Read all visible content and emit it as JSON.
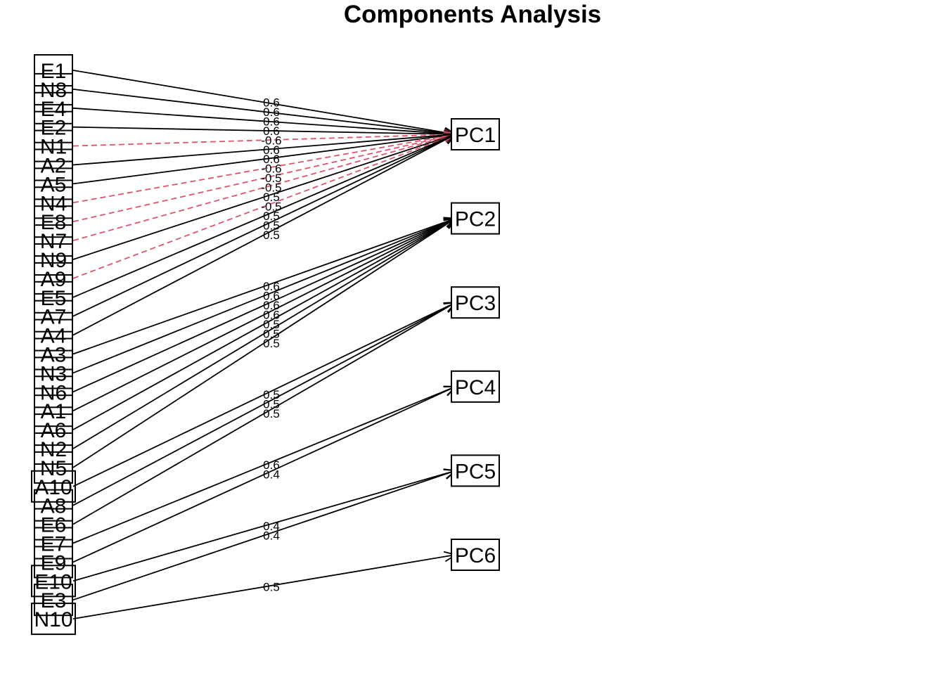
{
  "title": "Components Analysis",
  "colors": {
    "positive": "#000000",
    "negative": "#DF536B"
  },
  "variables": [
    "E1",
    "N8",
    "E4",
    "E2",
    "N1",
    "A2",
    "A5",
    "N4",
    "E8",
    "N7",
    "N9",
    "A9",
    "E5",
    "A7",
    "A4",
    "A3",
    "N3",
    "N6",
    "A1",
    "A6",
    "N2",
    "N5",
    "A10",
    "A8",
    "E6",
    "E7",
    "E9",
    "E10",
    "E3",
    "N10"
  ],
  "components": [
    "PC1",
    "PC2",
    "PC3",
    "PC4",
    "PC5",
    "PC6"
  ],
  "loadings": [
    {
      "from": "E1",
      "to": "PC1",
      "label": "0.6",
      "sign": "pos"
    },
    {
      "from": "N8",
      "to": "PC1",
      "label": "0.6",
      "sign": "pos"
    },
    {
      "from": "E4",
      "to": "PC1",
      "label": "0.6",
      "sign": "pos"
    },
    {
      "from": "E2",
      "to": "PC1",
      "label": "0.6",
      "sign": "pos"
    },
    {
      "from": "N1",
      "to": "PC1",
      "label": "-0.6",
      "sign": "neg"
    },
    {
      "from": "A2",
      "to": "PC1",
      "label": "0.6",
      "sign": "pos"
    },
    {
      "from": "A5",
      "to": "PC1",
      "label": "0.6",
      "sign": "pos"
    },
    {
      "from": "N4",
      "to": "PC1",
      "label": "-0.6",
      "sign": "neg"
    },
    {
      "from": "E8",
      "to": "PC1",
      "label": "-0.5",
      "sign": "neg"
    },
    {
      "from": "N7",
      "to": "PC1",
      "label": "-0.5",
      "sign": "neg"
    },
    {
      "from": "N9",
      "to": "PC1",
      "label": "0.5",
      "sign": "pos"
    },
    {
      "from": "A9",
      "to": "PC1",
      "label": "-0.5",
      "sign": "neg"
    },
    {
      "from": "E5",
      "to": "PC1",
      "label": "0.5",
      "sign": "pos"
    },
    {
      "from": "A7",
      "to": "PC1",
      "label": "0.5",
      "sign": "pos"
    },
    {
      "from": "A4",
      "to": "PC1",
      "label": "0.5",
      "sign": "pos"
    },
    {
      "from": "A3",
      "to": "PC2",
      "label": "0.6",
      "sign": "pos"
    },
    {
      "from": "N3",
      "to": "PC2",
      "label": "0.6",
      "sign": "pos"
    },
    {
      "from": "N6",
      "to": "PC2",
      "label": "0.6",
      "sign": "pos"
    },
    {
      "from": "A1",
      "to": "PC2",
      "label": "0.6",
      "sign": "pos"
    },
    {
      "from": "A6",
      "to": "PC2",
      "label": "0.5",
      "sign": "pos"
    },
    {
      "from": "N2",
      "to": "PC2",
      "label": "0.5",
      "sign": "pos"
    },
    {
      "from": "N5",
      "to": "PC2",
      "label": "0.5",
      "sign": "pos"
    },
    {
      "from": "A10",
      "to": "PC3",
      "label": "0.5",
      "sign": "pos"
    },
    {
      "from": "A8",
      "to": "PC3",
      "label": "0.5",
      "sign": "pos"
    },
    {
      "from": "E6",
      "to": "PC3",
      "label": "0.5",
      "sign": "pos"
    },
    {
      "from": "E7",
      "to": "PC4",
      "label": "0.6",
      "sign": "pos"
    },
    {
      "from": "E9",
      "to": "PC4",
      "label": "0.4",
      "sign": "pos"
    },
    {
      "from": "E10",
      "to": "PC5",
      "label": "0.4",
      "sign": "pos"
    },
    {
      "from": "E3",
      "to": "PC5",
      "label": "0.4",
      "sign": "pos"
    },
    {
      "from": "N10",
      "to": "PC6",
      "label": "0.5",
      "sign": "pos"
    }
  ]
}
